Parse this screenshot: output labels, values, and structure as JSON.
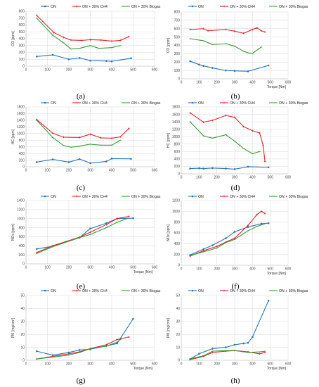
{
  "legend": [
    "ON",
    "ON + 30% CH4",
    "ON + 30% Biogas"
  ],
  "colors": [
    "#2e75b6",
    "#e0242c",
    "#3a9a3a"
  ],
  "chart_data": [
    {
      "id": "a",
      "panel_label": "(a)",
      "type": "line",
      "ylabel": "CO [ppm]",
      "xlabel": "",
      "xlim": [
        0,
        600
      ],
      "xticks": [
        0,
        100,
        200,
        300,
        400,
        500,
        600
      ],
      "ylim": [
        0,
        800
      ],
      "yticks": [
        0,
        100,
        200,
        300,
        400,
        500,
        600,
        700,
        800
      ],
      "series": [
        {
          "name": "ON",
          "points": [
            [
              50,
              140
            ],
            [
              125,
              165
            ],
            [
              200,
              100
            ],
            [
              250,
              120
            ],
            [
              300,
              80
            ],
            [
              375,
              75
            ],
            [
              400,
              70
            ],
            [
              490,
              115
            ]
          ]
        },
        {
          "name": "ON + 30% CH4",
          "points": [
            [
              50,
              740
            ],
            [
              130,
              490
            ],
            [
              175,
              420
            ],
            [
              210,
              380
            ],
            [
              260,
              375
            ],
            [
              300,
              385
            ],
            [
              350,
              380
            ],
            [
              400,
              365
            ],
            [
              440,
              375
            ],
            [
              480,
              430
            ]
          ]
        },
        {
          "name": "ON + 30% Biogas",
          "points": [
            [
              50,
              700
            ],
            [
              125,
              450
            ],
            [
              175,
              340
            ],
            [
              210,
              250
            ],
            [
              250,
              260
            ],
            [
              300,
              300
            ],
            [
              340,
              260
            ],
            [
              400,
              270
            ],
            [
              440,
              300
            ]
          ]
        }
      ]
    },
    {
      "id": "b",
      "panel_label": "(b)",
      "type": "line",
      "ylabel": "CO [ppm]",
      "xlabel": "Torque [Nm]",
      "xlim": [
        0,
        600
      ],
      "xticks": [
        0,
        100,
        200,
        300,
        400,
        500,
        600
      ],
      "ylim": [
        0,
        800
      ],
      "yticks": [
        0,
        100,
        200,
        300,
        400,
        500,
        600,
        700,
        800
      ],
      "series": [
        {
          "name": "ON",
          "points": [
            [
              50,
              210
            ],
            [
              100,
              170
            ],
            [
              125,
              155
            ],
            [
              175,
              130
            ],
            [
              250,
              100
            ],
            [
              300,
              95
            ],
            [
              375,
              90
            ],
            [
              490,
              160
            ]
          ]
        },
        {
          "name": "ON + 30% CH4",
          "points": [
            [
              50,
              590
            ],
            [
              125,
              600
            ],
            [
              150,
              575
            ],
            [
              250,
              590
            ],
            [
              300,
              570
            ],
            [
              350,
              545
            ],
            [
              400,
              590
            ],
            [
              425,
              610
            ],
            [
              450,
              575
            ],
            [
              470,
              560
            ]
          ]
        },
        {
          "name": "ON + 30% Biogas",
          "points": [
            [
              50,
              480
            ],
            [
              125,
              455
            ],
            [
              175,
              410
            ],
            [
              250,
              420
            ],
            [
              300,
              390
            ],
            [
              350,
              330
            ],
            [
              375,
              310
            ],
            [
              400,
              305
            ],
            [
              450,
              380
            ]
          ]
        }
      ]
    },
    {
      "id": "c",
      "panel_label": "(c)",
      "type": "line",
      "ylabel": "HC [ppm]",
      "xlabel": "",
      "xlim": [
        0,
        600
      ],
      "xticks": [
        0,
        100,
        200,
        300,
        400,
        500,
        600
      ],
      "ylim": [
        0,
        1800
      ],
      "yticks": [
        0,
        200,
        400,
        600,
        800,
        1000,
        1200,
        1400,
        1600,
        1800
      ],
      "series": [
        {
          "name": "ON",
          "points": [
            [
              50,
              140
            ],
            [
              125,
              220
            ],
            [
              200,
              140
            ],
            [
              250,
              230
            ],
            [
              300,
              110
            ],
            [
              375,
              160
            ],
            [
              400,
              245
            ],
            [
              490,
              240
            ]
          ]
        },
        {
          "name": "ON + 30% CH4",
          "points": [
            [
              50,
              1420
            ],
            [
              125,
              1010
            ],
            [
              175,
              890
            ],
            [
              250,
              880
            ],
            [
              300,
              980
            ],
            [
              350,
              870
            ],
            [
              400,
              860
            ],
            [
              440,
              900
            ],
            [
              480,
              1150
            ]
          ]
        },
        {
          "name": "ON + 30% Biogas",
          "points": [
            [
              50,
              1400
            ],
            [
              125,
              880
            ],
            [
              175,
              640
            ],
            [
              210,
              590
            ],
            [
              250,
              620
            ],
            [
              300,
              680
            ],
            [
              350,
              650
            ],
            [
              400,
              650
            ],
            [
              440,
              800
            ]
          ]
        }
      ]
    },
    {
      "id": "d",
      "panel_label": "(d)",
      "type": "line",
      "ylabel": "HC [ppm]",
      "xlabel": "",
      "xlim": [
        0,
        600
      ],
      "xticks": [
        0,
        100,
        200,
        300,
        400,
        500,
        600
      ],
      "ylim": [
        0,
        1800
      ],
      "yticks": [
        0,
        200,
        400,
        600,
        800,
        1000,
        1200,
        1400,
        1600,
        1800
      ],
      "series": [
        {
          "name": "ON",
          "points": [
            [
              50,
              140
            ],
            [
              100,
              150
            ],
            [
              125,
              140
            ],
            [
              175,
              155
            ],
            [
              250,
              140
            ],
            [
              300,
              125
            ],
            [
              375,
              190
            ],
            [
              490,
              175
            ]
          ]
        },
        {
          "name": "ON + 30% CH4",
          "points": [
            [
              50,
              1640
            ],
            [
              125,
              1390
            ],
            [
              175,
              1440
            ],
            [
              250,
              1570
            ],
            [
              300,
              1520
            ],
            [
              350,
              1270
            ],
            [
              400,
              1160
            ],
            [
              440,
              1100
            ],
            [
              460,
              760
            ],
            [
              470,
              330
            ]
          ]
        },
        {
          "name": "ON + 30% Biogas",
          "points": [
            [
              50,
              1400
            ],
            [
              125,
              1020
            ],
            [
              175,
              960
            ],
            [
              250,
              1050
            ],
            [
              300,
              880
            ],
            [
              350,
              680
            ],
            [
              400,
              540
            ],
            [
              440,
              600
            ]
          ]
        }
      ]
    },
    {
      "id": "e",
      "panel_label": "(e)",
      "type": "line",
      "ylabel": "NOx [ppm]",
      "xlabel": "Torque [Nm]",
      "xlim": [
        0,
        600
      ],
      "xticks": [
        0,
        100,
        200,
        300,
        400,
        500,
        600
      ],
      "ylim": [
        0,
        1400
      ],
      "yticks": [
        0,
        200,
        400,
        600,
        800,
        1000,
        1200,
        1400
      ],
      "series": [
        {
          "name": "ON",
          "points": [
            [
              50,
              330
            ],
            [
              125,
              390
            ],
            [
              250,
              580
            ],
            [
              300,
              780
            ],
            [
              375,
              900
            ],
            [
              425,
              1000
            ],
            [
              500,
              1010
            ]
          ]
        },
        {
          "name": "ON + 30% CH4",
          "points": [
            [
              50,
              250
            ],
            [
              125,
              400
            ],
            [
              250,
              590
            ],
            [
              300,
              700
            ],
            [
              375,
              870
            ],
            [
              425,
              1000
            ],
            [
              480,
              1050
            ]
          ]
        },
        {
          "name": "ON + 30% Biogas",
          "points": [
            [
              50,
              230
            ],
            [
              125,
              380
            ],
            [
              250,
              580
            ],
            [
              300,
              650
            ],
            [
              375,
              800
            ],
            [
              425,
              920
            ],
            [
              470,
              1000
            ]
          ]
        }
      ]
    },
    {
      "id": "f",
      "panel_label": "(f)",
      "type": "line",
      "ylabel": "NOx [ppm]",
      "xlabel": "Torque [Nm]",
      "xlim": [
        0,
        600
      ],
      "xticks": [
        0,
        100,
        200,
        300,
        400,
        500,
        600
      ],
      "ylim": [
        0,
        1200
      ],
      "yticks": [
        0,
        200,
        400,
        600,
        800,
        1000,
        1200
      ],
      "series": [
        {
          "name": "ON",
          "points": [
            [
              50,
              190
            ],
            [
              125,
              300
            ],
            [
              175,
              370
            ],
            [
              250,
              500
            ],
            [
              300,
              620
            ],
            [
              375,
              710
            ],
            [
              450,
              770
            ],
            [
              490,
              780
            ]
          ]
        },
        {
          "name": "ON + 30% CH4",
          "points": [
            [
              50,
              170
            ],
            [
              125,
              270
            ],
            [
              200,
              350
            ],
            [
              250,
              430
            ],
            [
              300,
              500
            ],
            [
              375,
              740
            ],
            [
              425,
              940
            ],
            [
              450,
              1000
            ],
            [
              470,
              960
            ]
          ]
        },
        {
          "name": "ON + 30% Biogas",
          "points": [
            [
              50,
              180
            ],
            [
              125,
              250
            ],
            [
              200,
              320
            ],
            [
              250,
              420
            ],
            [
              300,
              480
            ],
            [
              375,
              640
            ],
            [
              425,
              720
            ],
            [
              470,
              770
            ]
          ]
        }
      ]
    },
    {
      "id": "g",
      "panel_label": "(g)",
      "type": "line",
      "ylabel": "PM [mg/cm³]",
      "xlabel": "Torque [Nm]",
      "xlim": [
        0,
        600
      ],
      "xticks": [
        0,
        100,
        200,
        300,
        400,
        500,
        600
      ],
      "ylim": [
        0,
        50
      ],
      "yticks": [
        0,
        10,
        20,
        30,
        40,
        50
      ],
      "series": [
        {
          "name": "ON",
          "points": [
            [
              50,
              7
            ],
            [
              125,
              4
            ],
            [
              200,
              6
            ],
            [
              250,
              8
            ],
            [
              300,
              8.5
            ],
            [
              375,
              11
            ],
            [
              425,
              13
            ],
            [
              500,
              32
            ]
          ]
        },
        {
          "name": "ON + 30% CH4",
          "points": [
            [
              50,
              1
            ],
            [
              125,
              3
            ],
            [
              200,
              5
            ],
            [
              250,
              6.5
            ],
            [
              300,
              9
            ],
            [
              375,
              12
            ],
            [
              425,
              16
            ],
            [
              480,
              18
            ]
          ]
        },
        {
          "name": "ON + 30% Biogas",
          "points": [
            [
              50,
              1
            ],
            [
              125,
              2.5
            ],
            [
              200,
              4
            ],
            [
              250,
              6
            ],
            [
              300,
              9
            ],
            [
              375,
              11
            ],
            [
              425,
              14
            ],
            [
              450,
              17
            ]
          ]
        }
      ]
    },
    {
      "id": "h",
      "panel_label": "(h)",
      "type": "line",
      "ylabel": "PM [mg/cm³]",
      "xlabel": "Torque [Nm]",
      "xlim": [
        0,
        600
      ],
      "xticks": [
        0,
        100,
        200,
        300,
        400,
        500,
        600
      ],
      "ylim": [
        0,
        50
      ],
      "yticks": [
        0,
        10,
        20,
        30,
        40,
        50
      ],
      "series": [
        {
          "name": "ON",
          "points": [
            [
              50,
              1
            ],
            [
              100,
              5
            ],
            [
              175,
              9
            ],
            [
              250,
              10
            ],
            [
              300,
              12
            ],
            [
              350,
              13
            ],
            [
              375,
              13.5
            ],
            [
              400,
              18
            ],
            [
              490,
              46
            ]
          ]
        },
        {
          "name": "ON + 30% CH4",
          "points": [
            [
              50,
              0.5
            ],
            [
              125,
              3
            ],
            [
              175,
              6
            ],
            [
              250,
              7
            ],
            [
              300,
              7.5
            ],
            [
              375,
              6.5
            ],
            [
              440,
              5
            ],
            [
              470,
              6
            ]
          ]
        },
        {
          "name": "ON + 30% Biogas",
          "points": [
            [
              50,
              1
            ],
            [
              125,
              3.5
            ],
            [
              175,
              7
            ],
            [
              250,
              7.5
            ],
            [
              300,
              7.5
            ],
            [
              375,
              6
            ],
            [
              440,
              6.5
            ],
            [
              470,
              7
            ]
          ]
        }
      ]
    }
  ]
}
